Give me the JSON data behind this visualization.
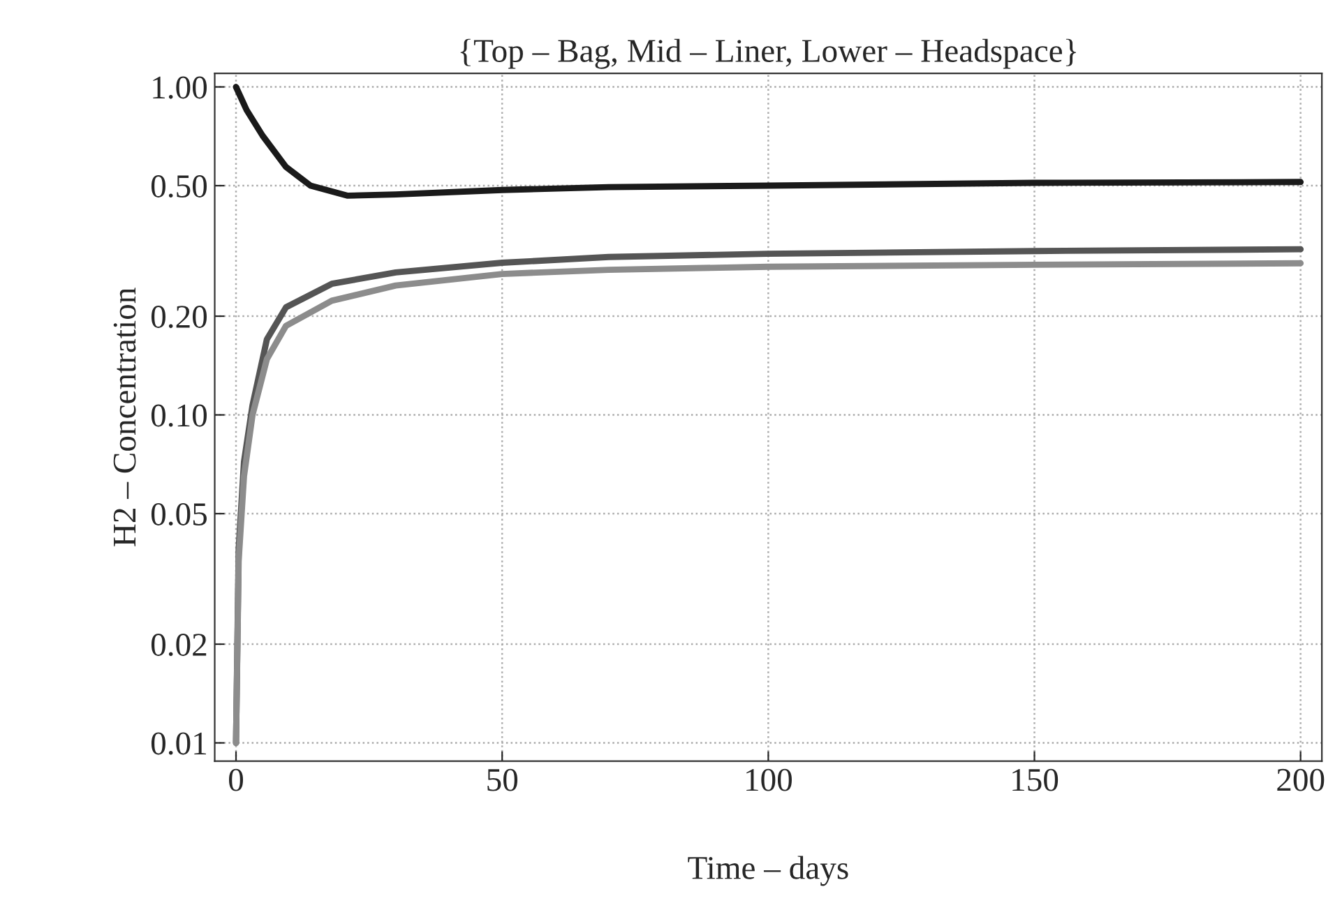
{
  "chart_data": {
    "type": "line",
    "title": "{Top – Bag, Mid – Liner, Lower – Headspace}",
    "xlabel": "Time – days",
    "ylabel": "H2 – Concentration",
    "log": "y",
    "grid": true,
    "marker": "none",
    "line_style": "solid",
    "xlim": [
      -4,
      204
    ],
    "xticks": [
      0,
      50,
      100,
      150,
      200
    ],
    "ylim": [
      0.0088,
      1.1
    ],
    "yticks": [
      {
        "value": 0.01,
        "label": "0.01"
      },
      {
        "value": 0.02,
        "label": "0.02"
      },
      {
        "value": 0.05,
        "label": "0.05"
      },
      {
        "value": 0.1,
        "label": "0.10"
      },
      {
        "value": 0.2,
        "label": "0.20"
      },
      {
        "value": 0.5,
        "label": "0.50"
      },
      {
        "value": 1.0,
        "label": "1.00"
      }
    ],
    "series": [
      {
        "color": "#1a1a1a",
        "x": [
          0,
          2,
          5,
          9.4,
          14,
          21,
          30,
          50,
          70,
          100,
          150,
          200
        ],
        "values": [
          1.0,
          0.85,
          0.71,
          0.57,
          0.5,
          0.466,
          0.47,
          0.485,
          0.495,
          0.5,
          0.51,
          0.513
        ]
      },
      {
        "color": "#555555",
        "x": [
          0,
          0.5,
          1.5,
          3.1,
          5.8,
          9.4,
          18,
          30,
          50,
          70,
          100,
          150,
          200
        ],
        "values": [
          0.01,
          0.039,
          0.072,
          0.107,
          0.17,
          0.213,
          0.251,
          0.272,
          0.291,
          0.303,
          0.31,
          0.316,
          0.32
        ]
      },
      {
        "color": "#8c8c8c",
        "x": [
          0,
          0.5,
          1.5,
          3.1,
          5.8,
          9.4,
          18,
          30,
          50,
          70,
          100,
          150,
          200
        ],
        "values": [
          0.01,
          0.036,
          0.065,
          0.1,
          0.148,
          0.187,
          0.223,
          0.248,
          0.269,
          0.277,
          0.283,
          0.287,
          0.29
        ]
      }
    ]
  }
}
